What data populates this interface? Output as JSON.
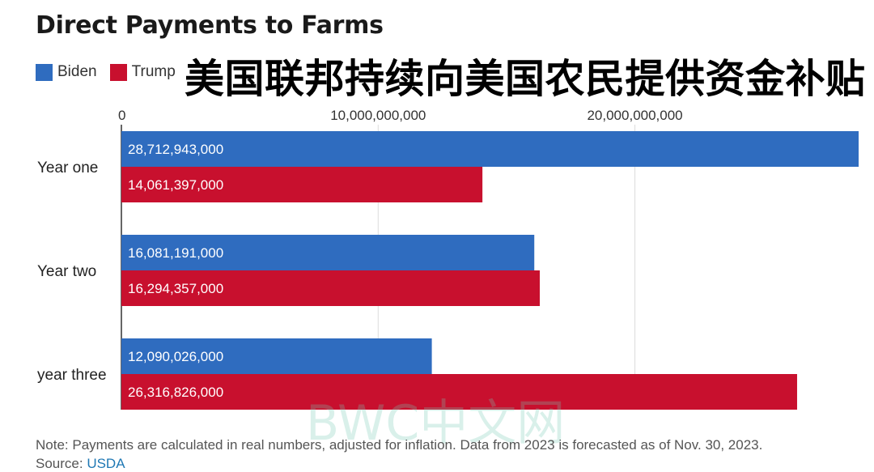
{
  "header": {
    "title": "Direct Payments to Farms",
    "subtitle_cn": "美国联邦持续向美国农民提供资金补贴"
  },
  "legend": [
    {
      "label": "Biden",
      "color": "#2f6cbf"
    },
    {
      "label": "Trump",
      "color": "#c8102e"
    }
  ],
  "watermark": "BWC中文网",
  "footer": {
    "note": "Note: Payments are calculated in real numbers, adjusted for inflation. Data from 2023 is forecasted as of Nov. 30, 2023.",
    "source_prefix": "Source: ",
    "source_link": "USDA"
  },
  "chart_data": {
    "type": "bar",
    "orientation": "horizontal",
    "title": "Direct Payments to Farms",
    "categories": [
      "Year one",
      "Year two",
      "year three"
    ],
    "series": [
      {
        "name": "Biden",
        "color": "#2f6cbf",
        "values": [
          28712943000,
          16081191000,
          12090026000
        ],
        "labels": [
          "28,712,943,000",
          "16,081,191,000",
          "12,090,026,000"
        ]
      },
      {
        "name": "Trump",
        "color": "#c8102e",
        "values": [
          14061397000,
          16294357000,
          26316826000
        ],
        "labels": [
          "14,061,397,000",
          "16,294,357,000",
          "26,316,826,000"
        ]
      }
    ],
    "xlim": [
      0,
      28712943000
    ],
    "xticks": [
      0,
      10000000000,
      20000000000
    ],
    "xtick_labels": [
      "0",
      "10,000,000,000",
      "20,000,000,000"
    ],
    "grid": true,
    "legend_position": "top-left"
  }
}
